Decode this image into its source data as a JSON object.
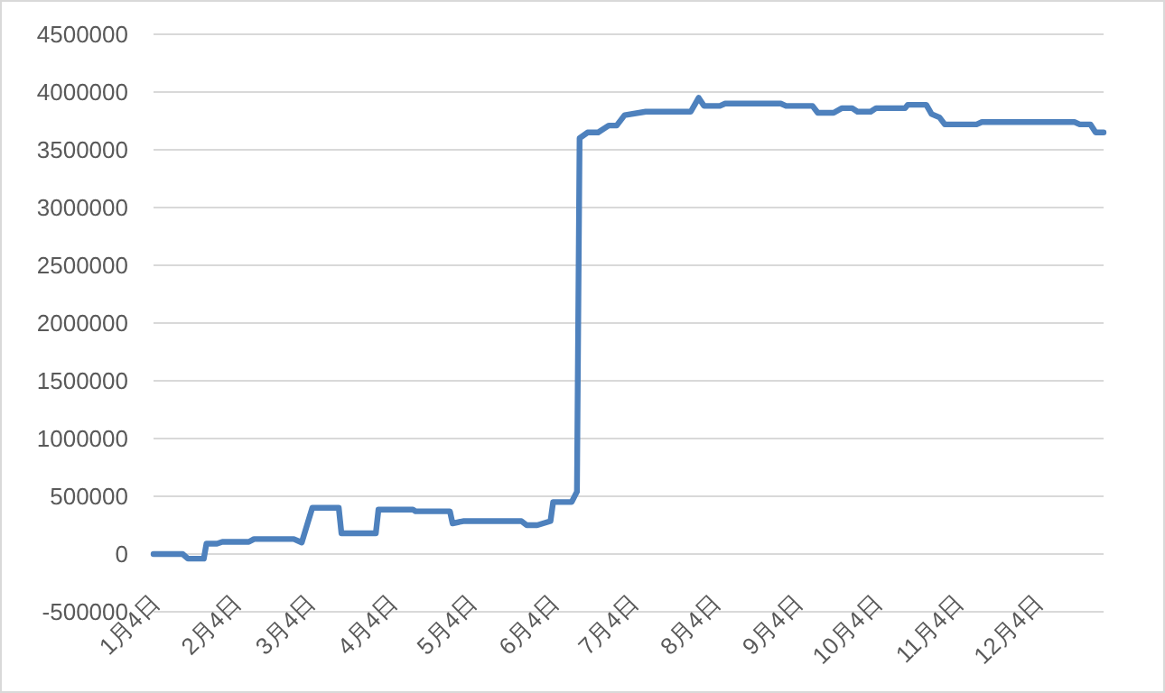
{
  "chart_data": {
    "type": "line",
    "x": [
      "--01-04",
      "--01-15",
      "--01-17",
      "--01-23",
      "--01-24",
      "--01-28",
      "--01-30",
      "--02-09",
      "--02-11",
      "--02-26",
      "--03-01",
      "--03-05",
      "--03-15",
      "--03-16",
      "--03-29",
      "--03-30",
      "--04-12",
      "--04-13",
      "--04-26",
      "--04-27",
      "--05-01",
      "--05-23",
      "--05-25",
      "--05-29",
      "--06-03",
      "--06-04",
      "--06-11",
      "--06-13",
      "--06-14",
      "--06-17",
      "--06-21",
      "--06-25",
      "--06-28",
      "--07-01",
      "--07-09",
      "--07-26",
      "--07-29",
      "--07-31",
      "--08-06",
      "--08-08",
      "--08-29",
      "--08-31",
      "--09-10",
      "--09-12",
      "--09-18",
      "--09-21",
      "--09-25",
      "--09-27",
      "--10-02",
      "--10-04",
      "--10-15",
      "--10-16",
      "--10-23",
      "--10-25",
      "--10-28",
      "--10-30",
      "--11-11",
      "--11-13",
      "--12-18",
      "--12-20",
      "--12-24",
      "--12-26",
      "--12-29"
    ],
    "series": [
      {
        "color": "#4e81bd",
        "values": [
          0,
          0,
          -40000,
          -40000,
          90000,
          90000,
          105000,
          105000,
          130000,
          130000,
          100000,
          400000,
          400000,
          180000,
          180000,
          385000,
          385000,
          370000,
          370000,
          265000,
          285000,
          285000,
          250000,
          250000,
          285000,
          450000,
          450000,
          540000,
          3600000,
          3650000,
          3650000,
          3710000,
          3710000,
          3800000,
          3830000,
          3830000,
          3950000,
          3880000,
          3880000,
          3900000,
          3900000,
          3880000,
          3880000,
          3820000,
          3820000,
          3860000,
          3860000,
          3830000,
          3830000,
          3860000,
          3860000,
          3890000,
          3890000,
          3810000,
          3780000,
          3720000,
          3720000,
          3740000,
          3740000,
          3720000,
          3720000,
          3650000,
          3650000
        ]
      }
    ],
    "xlim": [
      "--01-04",
      "--12-29"
    ],
    "xticks": [
      {
        "value": "--01-04",
        "label": "1月4日"
      },
      {
        "value": "--02-04",
        "label": "2月4日"
      },
      {
        "value": "--03-04",
        "label": "3月4日"
      },
      {
        "value": "--04-04",
        "label": "4月4日"
      },
      {
        "value": "--05-04",
        "label": "5月4日"
      },
      {
        "value": "--06-04",
        "label": "6月4日"
      },
      {
        "value": "--07-04",
        "label": "7月4日"
      },
      {
        "value": "--08-04",
        "label": "8月4日"
      },
      {
        "value": "--09-04",
        "label": "9月4日"
      },
      {
        "value": "--10-04",
        "label": "10月4日"
      },
      {
        "value": "--11-04",
        "label": "11月4日"
      },
      {
        "value": "--12-04",
        "label": "12月4日"
      }
    ],
    "ylim": [
      -500000,
      4500000
    ],
    "yticks": [
      -500000,
      0,
      500000,
      1000000,
      1500000,
      2000000,
      2500000,
      3000000,
      3500000,
      4000000,
      4500000
    ],
    "grid": "y"
  }
}
